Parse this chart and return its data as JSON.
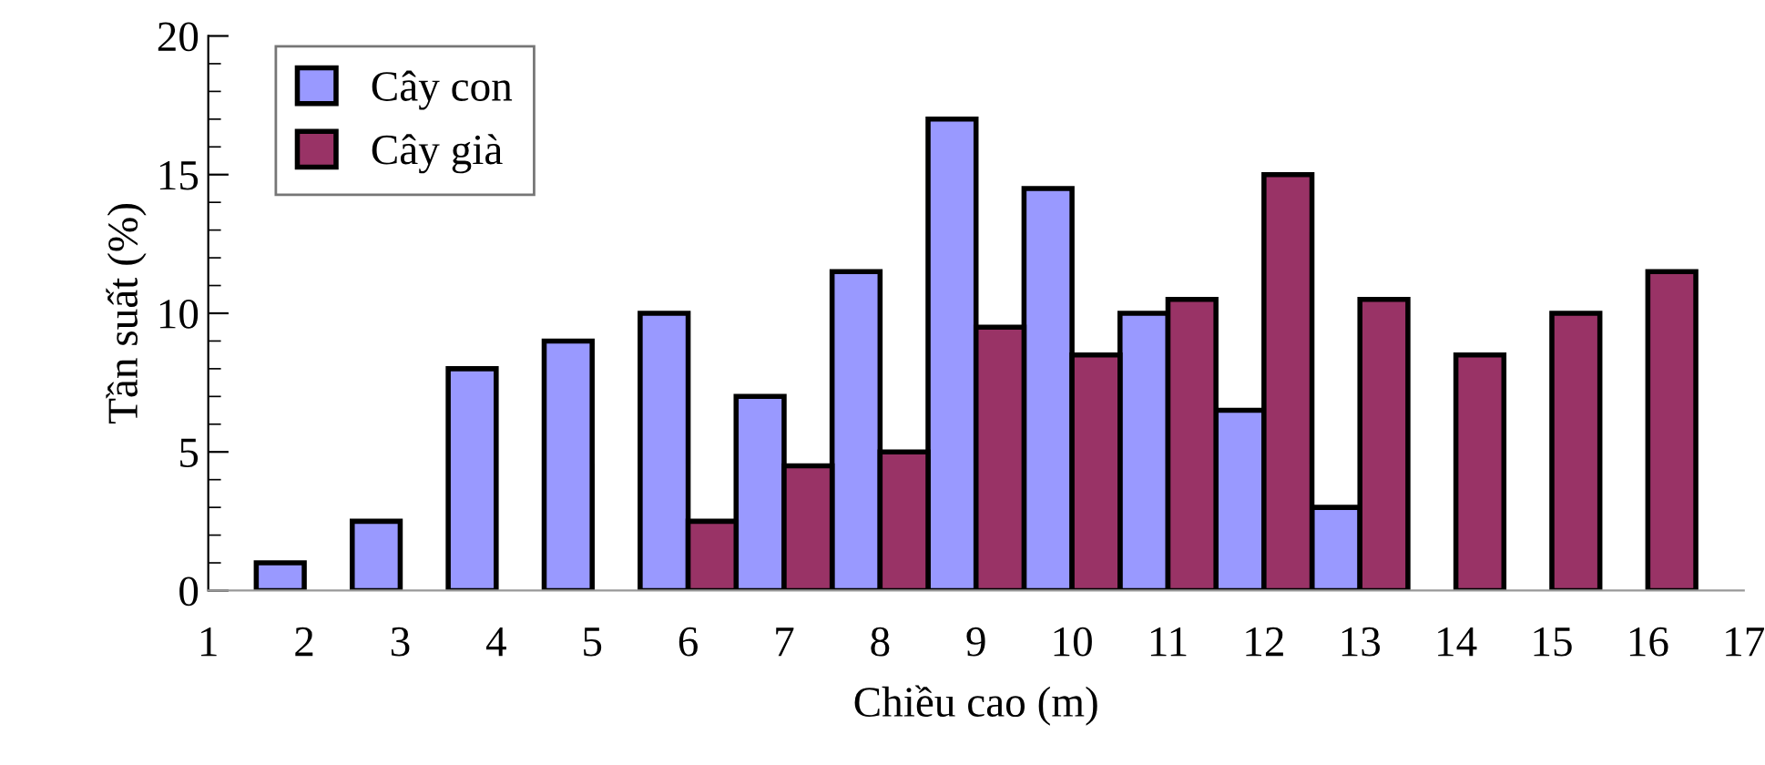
{
  "chart_data": {
    "type": "bar",
    "xlabel": "Chiều cao (m)",
    "ylabel": "Tần suất (%)",
    "x": [
      2,
      3,
      4,
      5,
      6,
      7,
      8,
      9,
      10,
      11,
      12,
      13,
      14,
      15,
      16
    ],
    "series": [
      {
        "name": "Cây con",
        "color": "#9999ff",
        "values": [
          1,
          2.5,
          8,
          9,
          10,
          7,
          11.5,
          17,
          14.5,
          10,
          6.5,
          3,
          null,
          null,
          null
        ]
      },
      {
        "name": "Cây già",
        "color": "#993366",
        "values": [
          null,
          null,
          null,
          null,
          2.5,
          4.5,
          5,
          9.5,
          8.5,
          10.5,
          15,
          10.5,
          8.5,
          10,
          11.5
        ]
      }
    ],
    "xlim": [
      1,
      17
    ],
    "xticks": [
      1,
      2,
      3,
      4,
      5,
      6,
      7,
      8,
      9,
      10,
      11,
      12,
      13,
      14,
      15,
      16,
      17
    ],
    "ylim": [
      0,
      20
    ],
    "yticks": [
      0,
      5,
      10,
      15,
      20
    ],
    "grid": false,
    "legend": "top left"
  }
}
